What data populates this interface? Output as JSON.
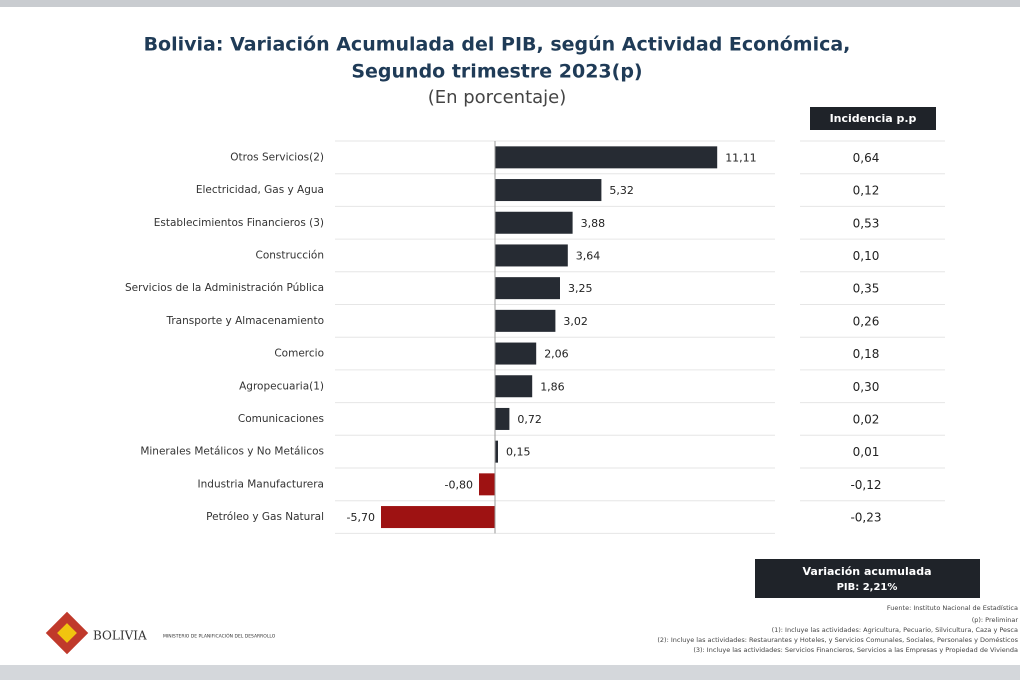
{
  "chart_data": {
    "type": "hbar",
    "title": [
      "Bolivia: Variación Acumulada del PIB, según Actividad Económica,",
      "Segundo trimestre 2023(p)"
    ],
    "subtitle": "(En porcentaje)",
    "categories": [
      "Otros Servicios(2)",
      "Electricidad, Gas y Agua",
      "Establecimientos Financieros (3)",
      "Construcción",
      "Servicios de la Administración Pública",
      "Transporte y Almacenamiento",
      "Comercio",
      "Agropecuaria(1)",
      "Comunicaciones",
      "Minerales Metálicos y No Metálicos",
      "Industria Manufacturera",
      "Petróleo y Gas Natural"
    ],
    "values": [
      11.11,
      5.32,
      3.88,
      3.64,
      3.25,
      3.02,
      2.06,
      1.86,
      0.72,
      0.15,
      -0.8,
      -5.7
    ],
    "value_labels": [
      "11,11",
      "5,32",
      "3,88",
      "3,64",
      "3,25",
      "3,02",
      "2,06",
      "1,86",
      "0,72",
      "0,15",
      "-0,80",
      "-5,70"
    ],
    "color": "#262b33",
    "negative_color": "#9e1212",
    "xlim": [
      -8,
      14
    ],
    "incidence": {
      "header": "Incidencia p.p",
      "values": [
        0.64,
        0.12,
        0.53,
        0.1,
        0.35,
        0.26,
        0.18,
        0.3,
        0.02,
        0.01,
        -0.12,
        -0.23
      ],
      "value_labels": [
        "0,64",
        "0,12",
        "0,53",
        "0,10",
        "0,35",
        "0,26",
        "0,18",
        "0,30",
        "0,02",
        "0,01",
        "-0,12",
        "-0,23"
      ]
    },
    "total": {
      "label": "Variación acumulada",
      "value": 2.21,
      "value_label": "PIB: 2,21%"
    },
    "source": "Fuente: Instituto Nacional de Estadística",
    "notes": [
      "(p): Preliminar",
      "(1): Incluye las actividades: Agricultura, Pecuario, Silvicultura, Caza y Pesca",
      "(2): Incluye las actividades: Restaurantes y Hoteles, y Servicios Comunales, Sociales, Personales y Domésticos",
      "(3): Incluye las actividades: Servicios Financieros, Servicios a las Empresas y Propiedad de Vivienda"
    ],
    "logo_text": [
      "BOLIVIA",
      "MINISTERIO DE PLANIFICACIÓN DEL DESARROLLO"
    ]
  }
}
